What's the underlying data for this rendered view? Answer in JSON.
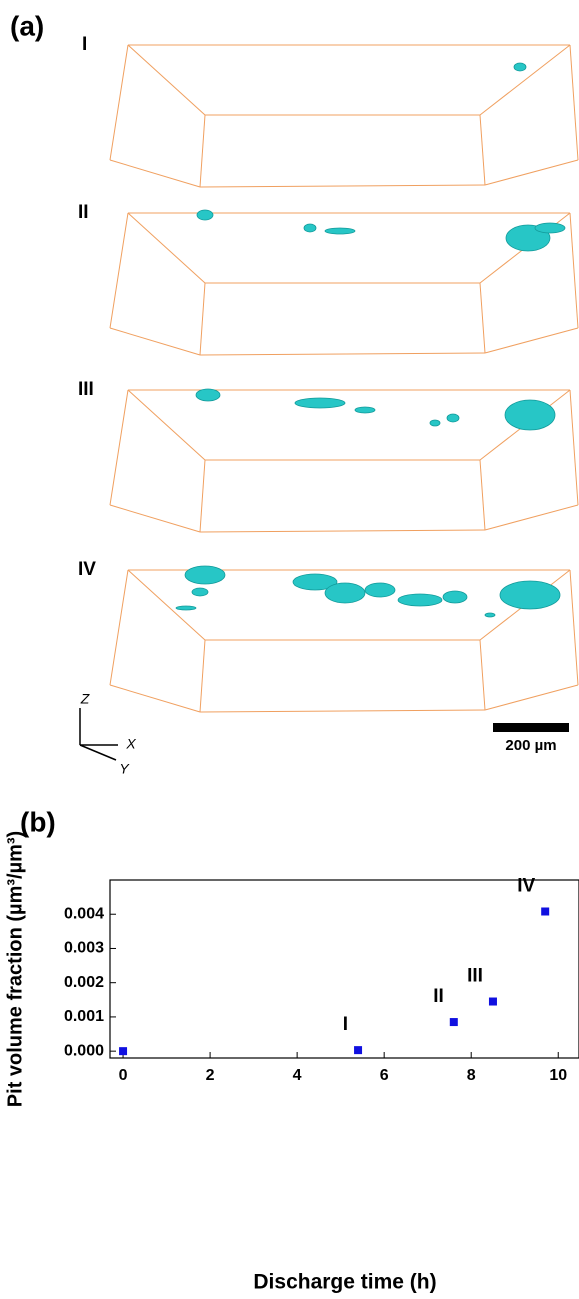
{
  "panel_a": {
    "label": "(a)",
    "stages": [
      "I",
      "II",
      "III",
      "IV"
    ],
    "scale_bar": "200 µm",
    "axes": [
      "Z",
      "X",
      "Y"
    ]
  },
  "chart_data": {
    "type": "scatter",
    "panel_label": "(b)",
    "x_label": "Discharge time (h)",
    "y_label": "Pit volume fraction (µm³/µm³)",
    "x": [
      0,
      5.4,
      7.6,
      8.5,
      9.7
    ],
    "values": [
      0.0,
      3e-05,
      0.00085,
      0.00145,
      0.00408
    ],
    "point_labels": [
      null,
      "I",
      "II",
      "III",
      "IV"
    ],
    "color": "#1010e0",
    "xlim": [
      -0.3,
      10.5
    ],
    "xticks": [
      0,
      2,
      4,
      6,
      8,
      10
    ],
    "ylim": [
      -0.0002,
      0.005
    ],
    "yticks": [
      {
        "value": 0,
        "label": "0.000"
      },
      {
        "value": 0.001,
        "label": "0.001"
      },
      {
        "value": 0.002,
        "label": "0.002"
      },
      {
        "value": 0.003,
        "label": "0.003"
      },
      {
        "value": 0.004,
        "label": "0.004"
      }
    ]
  }
}
